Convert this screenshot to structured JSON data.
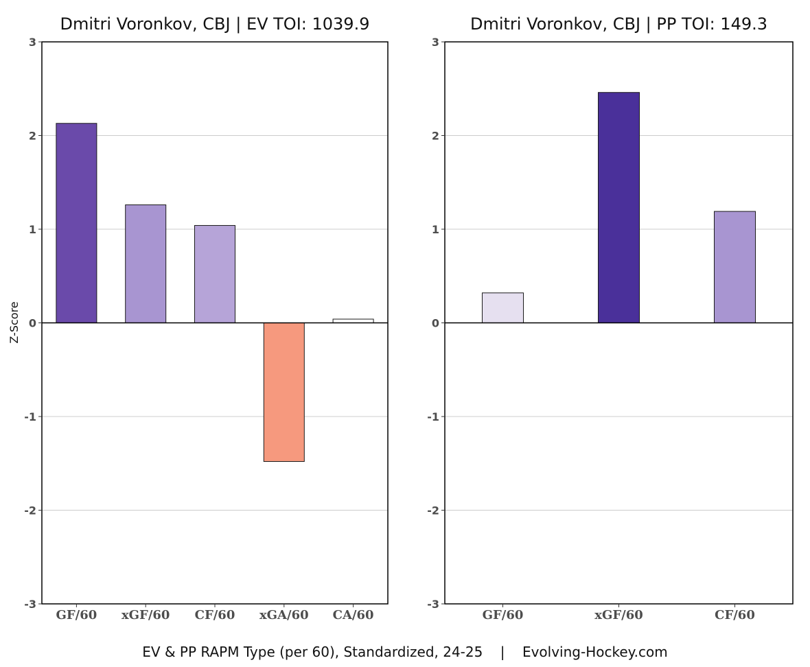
{
  "y_axis_label": "Z-Score",
  "caption": "EV & PP RAPM Type (per 60), Standardized, 24-25    |    Evolving-Hockey.com",
  "chart_data": [
    {
      "type": "bar",
      "title": "Dmitri Voronkov, CBJ  |  EV TOI: 1039.9",
      "categories": [
        "GF/60",
        "xGF/60",
        "CF/60",
        "xGA/60",
        "CA/60"
      ],
      "values": [
        2.13,
        1.26,
        1.04,
        -1.48,
        0.04
      ],
      "colors": [
        "#6a4aaa",
        "#a895d1",
        "#b6a4d8",
        "#f6997e",
        "#ffffff"
      ],
      "ylim": [
        -3,
        3
      ],
      "yticks": [
        3,
        2,
        1,
        0,
        -1,
        -2,
        -3
      ],
      "grid": true,
      "ylabel": "Z-Score"
    },
    {
      "type": "bar",
      "title": "Dmitri Voronkov, CBJ  |  PP TOI: 149.3",
      "categories": [
        "GF/60",
        "xGF/60",
        "CF/60"
      ],
      "values": [
        0.32,
        2.46,
        1.19
      ],
      "colors": [
        "#e6e0f0",
        "#4a309a",
        "#a895d1"
      ],
      "ylim": [
        -3,
        3
      ],
      "yticks": [
        3,
        2,
        1,
        0,
        -1,
        -2,
        -3
      ],
      "grid": true,
      "ylabel": ""
    }
  ]
}
